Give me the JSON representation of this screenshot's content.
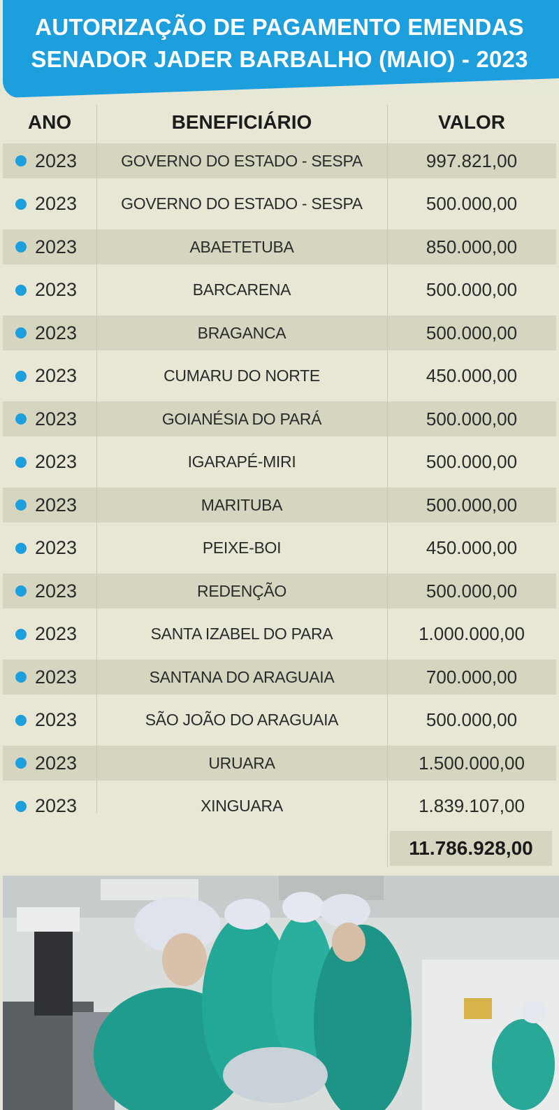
{
  "title": {
    "line1": "AUTORIZAÇÃO DE PAGAMENTO EMENDAS",
    "line2": "SENADOR JADER BARBALHO (MAIO) - 2023"
  },
  "columns": {
    "ano": "ANO",
    "beneficiario": "BENEFICIÁRIO",
    "valor": "VALOR"
  },
  "rows": [
    {
      "ano": "2023",
      "beneficiario": "GOVERNO DO ESTADO - SESPA",
      "valor": "997.821,00"
    },
    {
      "ano": "2023",
      "beneficiario": "GOVERNO DO ESTADO - SESPA",
      "valor": "500.000,00"
    },
    {
      "ano": "2023",
      "beneficiario": "ABAETETUBA",
      "valor": "850.000,00"
    },
    {
      "ano": "2023",
      "beneficiario": "BARCARENA",
      "valor": "500.000,00"
    },
    {
      "ano": "2023",
      "beneficiario": "BRAGANCA",
      "valor": "500.000,00"
    },
    {
      "ano": "2023",
      "beneficiario": "CUMARU DO NORTE",
      "valor": "450.000,00"
    },
    {
      "ano": "2023",
      "beneficiario": "GOIANÉSIA DO PARÁ",
      "valor": "500.000,00"
    },
    {
      "ano": "2023",
      "beneficiario": "IGARAPÉ-MIRI",
      "valor": "500.000,00"
    },
    {
      "ano": "2023",
      "beneficiario": "MARITUBA",
      "valor": "500.000,00"
    },
    {
      "ano": "2023",
      "beneficiario": "PEIXE-BOI",
      "valor": "450.000,00"
    },
    {
      "ano": "2023",
      "beneficiario": "REDENÇÃO",
      "valor": "500.000,00"
    },
    {
      "ano": "2023",
      "beneficiario": "SANTA IZABEL DO PARA",
      "valor": "1.000.000,00"
    },
    {
      "ano": "2023",
      "beneficiario": "SANTANA DO ARAGUAIA",
      "valor": "700.000,00"
    },
    {
      "ano": "2023",
      "beneficiario": "SÃO JOÃO DO ARAGUAIA",
      "valor": "500.000,00"
    },
    {
      "ano": "2023",
      "beneficiario": "URUARA",
      "valor": "1.500.000,00"
    },
    {
      "ano": "2023",
      "beneficiario": "XINGUARA",
      "valor": "1.839.107,00"
    }
  ],
  "total": "11.786.928,00",
  "colors": {
    "accent": "#1e9fdd",
    "row_light": "#e8e7d5",
    "row_shaded": "#d6d5c0",
    "scrub_green": "#1f9c8c"
  }
}
